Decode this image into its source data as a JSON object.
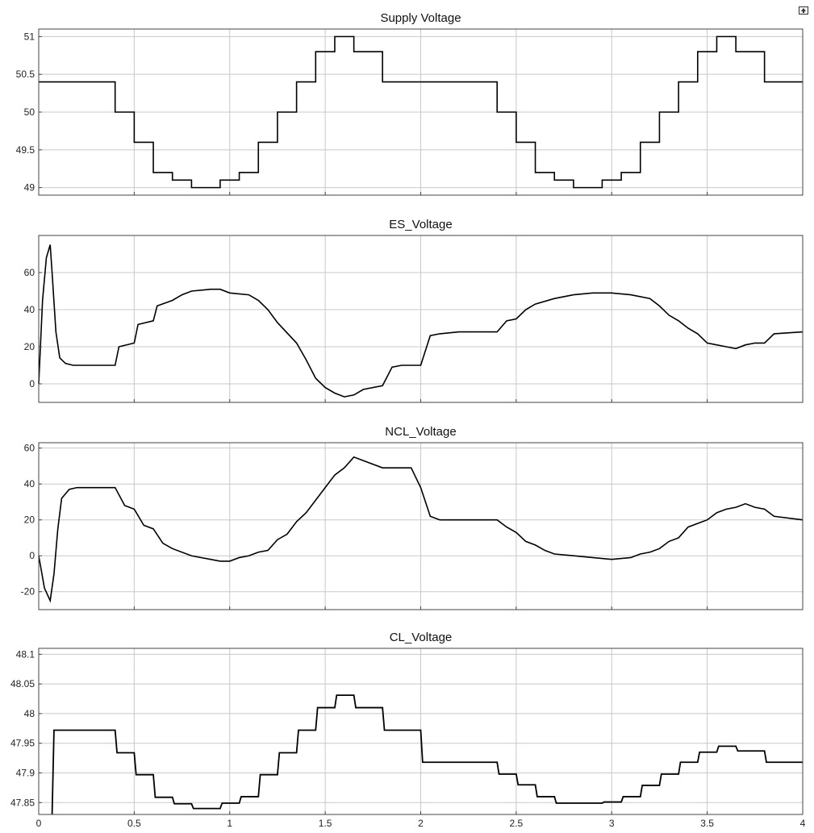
{
  "chart_data": [
    {
      "type": "line",
      "title": "Supply Voltage",
      "xlim": [
        0,
        4
      ],
      "ylim": [
        48.9,
        51.1
      ],
      "yticks": [
        49,
        49.5,
        50,
        50.5,
        51
      ],
      "xticks": [
        0,
        0.5,
        1,
        1.5,
        2,
        2.5,
        3,
        3.5,
        4
      ],
      "grid": true,
      "series": [
        {
          "step": true,
          "x": [
            0,
            0.4,
            0.5,
            0.6,
            0.7,
            0.8,
            0.95,
            1.05,
            1.15,
            1.25,
            1.35,
            1.45,
            1.55,
            1.65,
            1.8,
            2.4,
            2.5,
            2.6,
            2.7,
            2.8,
            2.95,
            3.05,
            3.15,
            3.25,
            3.35,
            3.45,
            3.55,
            3.65,
            3.8,
            4.0
          ],
          "y": [
            50.4,
            50.0,
            49.6,
            49.2,
            49.1,
            49.0,
            49.1,
            49.2,
            49.6,
            50.0,
            50.4,
            50.8,
            51.0,
            50.8,
            50.4,
            50.0,
            49.6,
            49.2,
            49.1,
            49.0,
            49.1,
            49.2,
            49.6,
            50.0,
            50.4,
            50.8,
            51.0,
            50.8,
            50.4,
            50.4
          ]
        }
      ]
    },
    {
      "type": "line",
      "title": "ES_Voltage",
      "xlim": [
        0,
        4
      ],
      "ylim": [
        -10,
        80
      ],
      "yticks": [
        0,
        20,
        40,
        60
      ],
      "xticks": [
        0,
        0.5,
        1,
        1.5,
        2,
        2.5,
        3,
        3.5,
        4
      ],
      "grid": true,
      "series": [
        {
          "step": false,
          "x": [
            0,
            0.02,
            0.04,
            0.06,
            0.07,
            0.09,
            0.11,
            0.14,
            0.18,
            0.3,
            0.4,
            0.42,
            0.5,
            0.52,
            0.6,
            0.62,
            0.7,
            0.75,
            0.8,
            0.9,
            0.95,
            1.0,
            1.1,
            1.15,
            1.2,
            1.25,
            1.35,
            1.4,
            1.45,
            1.5,
            1.55,
            1.6,
            1.65,
            1.7,
            1.8,
            1.85,
            1.9,
            1.95,
            2.0,
            2.05,
            2.1,
            2.2,
            2.4,
            2.45,
            2.5,
            2.55,
            2.6,
            2.7,
            2.8,
            2.9,
            3.0,
            3.1,
            3.2,
            3.25,
            3.3,
            3.35,
            3.4,
            3.45,
            3.5,
            3.55,
            3.6,
            3.65,
            3.7,
            3.75,
            3.8,
            3.85,
            4.0
          ],
          "y": [
            0,
            45,
            68,
            75,
            60,
            28,
            14,
            11,
            10,
            10,
            10,
            20,
            22,
            32,
            34,
            42,
            45,
            48,
            50,
            51,
            51,
            49,
            48,
            45,
            40,
            33,
            22,
            13,
            3,
            -2,
            -5,
            -7,
            -6,
            -3,
            -1,
            9,
            10,
            10,
            10,
            26,
            27,
            28,
            28,
            34,
            35,
            40,
            43,
            46,
            48,
            49,
            49,
            48,
            46,
            42,
            37,
            34,
            30,
            27,
            22,
            21,
            20,
            19,
            21,
            22,
            22,
            27,
            28
          ]
        }
      ]
    },
    {
      "type": "line",
      "title": "NCL_Voltage",
      "xlim": [
        0,
        4
      ],
      "ylim": [
        -30,
        63
      ],
      "yticks": [
        -20,
        0,
        20,
        40,
        60
      ],
      "xticks": [
        0,
        0.5,
        1,
        1.5,
        2,
        2.5,
        3,
        3.5,
        4
      ],
      "grid": true,
      "series": [
        {
          "step": false,
          "x": [
            0,
            0.03,
            0.06,
            0.08,
            0.1,
            0.12,
            0.16,
            0.2,
            0.4,
            0.45,
            0.5,
            0.55,
            0.6,
            0.65,
            0.7,
            0.8,
            0.9,
            0.95,
            1.0,
            1.05,
            1.1,
            1.15,
            1.2,
            1.25,
            1.3,
            1.35,
            1.4,
            1.45,
            1.5,
            1.55,
            1.6,
            1.65,
            1.7,
            1.8,
            1.95,
            2.0,
            2.05,
            2.1,
            2.4,
            2.45,
            2.5,
            2.55,
            2.6,
            2.65,
            2.7,
            2.8,
            2.9,
            3.0,
            3.1,
            3.15,
            3.2,
            3.25,
            3.3,
            3.35,
            3.4,
            3.45,
            3.5,
            3.55,
            3.6,
            3.65,
            3.7,
            3.75,
            3.8,
            3.85,
            4.0
          ],
          "y": [
            0,
            -18,
            -25,
            -10,
            15,
            32,
            37,
            38,
            38,
            28,
            26,
            17,
            15,
            7,
            4,
            0,
            -2,
            -3,
            -3,
            -1,
            0,
            2,
            3,
            9,
            12,
            19,
            24,
            31,
            38,
            45,
            49,
            55,
            53,
            49,
            49,
            38,
            22,
            20,
            20,
            16,
            13,
            8,
            6,
            3,
            1,
            0,
            -1,
            -2,
            -1,
            1,
            2,
            4,
            8,
            10,
            16,
            18,
            20,
            24,
            26,
            27,
            29,
            27,
            26,
            22,
            20
          ]
        }
      ]
    },
    {
      "type": "line",
      "title": "CL_Voltage",
      "xlim": [
        0,
        4
      ],
      "ylim": [
        47.83,
        48.11
      ],
      "yticks": [
        47.85,
        47.9,
        47.95,
        48,
        48.05,
        48.1
      ],
      "xticks": [
        0,
        0.5,
        1,
        1.5,
        2,
        2.5,
        3,
        3.5,
        4
      ],
      "grid": true,
      "series": [
        {
          "step": false,
          "x": [
            0.07,
            0.08,
            0.4,
            0.41,
            0.5,
            0.51,
            0.6,
            0.61,
            0.7,
            0.71,
            0.8,
            0.81,
            0.95,
            0.96,
            1.05,
            1.06,
            1.15,
            1.16,
            1.25,
            1.26,
            1.35,
            1.36,
            1.45,
            1.46,
            1.55,
            1.56,
            1.65,
            1.66,
            1.8,
            1.81,
            2.0,
            2.01,
            2.4,
            2.41,
            2.5,
            2.51,
            2.6,
            2.61,
            2.7,
            2.71,
            2.8,
            2.81,
            2.95,
            2.96,
            3.05,
            3.06,
            3.15,
            3.16,
            3.25,
            3.26,
            3.35,
            3.36,
            3.45,
            3.46,
            3.55,
            3.56,
            3.65,
            3.66,
            3.8,
            3.81,
            4.0
          ],
          "y": [
            47.83,
            47.972,
            47.972,
            47.934,
            47.934,
            47.897,
            47.897,
            47.859,
            47.859,
            47.848,
            47.848,
            47.84,
            47.84,
            47.849,
            47.849,
            47.86,
            47.86,
            47.897,
            47.897,
            47.934,
            47.934,
            47.972,
            47.972,
            48.01,
            48.01,
            48.031,
            48.031,
            48.01,
            48.01,
            47.972,
            47.972,
            47.918,
            47.918,
            47.898,
            47.898,
            47.88,
            47.88,
            47.86,
            47.86,
            47.849,
            47.849,
            47.849,
            47.849,
            47.851,
            47.851,
            47.86,
            47.86,
            47.879,
            47.879,
            47.898,
            47.898,
            47.918,
            47.918,
            47.935,
            47.935,
            47.945,
            47.945,
            47.937,
            47.937,
            47.918,
            47.918
          ]
        }
      ]
    }
  ]
}
